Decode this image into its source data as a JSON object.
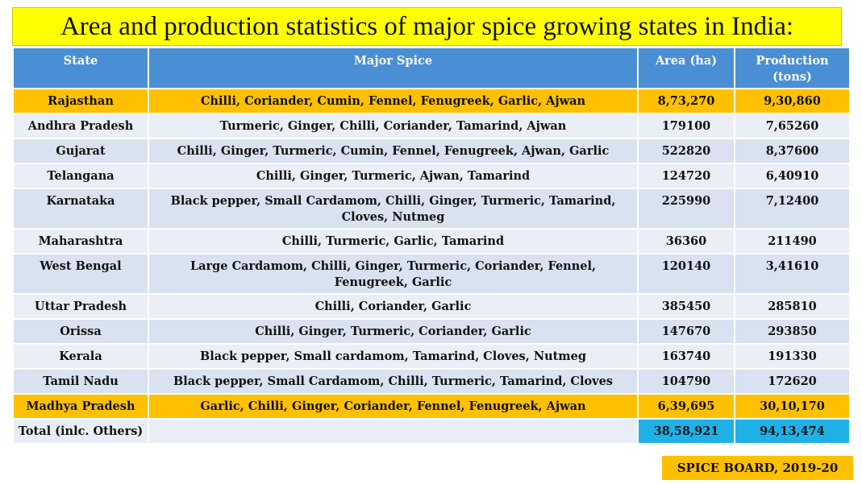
{
  "title": "Area and production statistics of major spice growing states in India:",
  "headers": {
    "state": "State",
    "spice": "Major Spice",
    "area": "Area (ha)",
    "production": "Production (tons)"
  },
  "rows": [
    {
      "state": "Rajasthan",
      "spice": "Chilli, Coriander, Cumin, Fennel, Fenugreek, Garlic, Ajwan",
      "area": "8,73,270",
      "production": "9,30,860"
    },
    {
      "state": "Andhra Pradesh",
      "spice": "Turmeric, Ginger, Chilli, Coriander, Tamarind, Ajwan",
      "area": "179100",
      "production": "7,65260"
    },
    {
      "state": "Gujarat",
      "spice": "Chilli, Ginger, Turmeric, Cumin, Fennel, Fenugreek, Ajwan, Garlic",
      "area": "522820",
      "production": "8,37600"
    },
    {
      "state": "Telangana",
      "spice": "Chilli, Ginger, Turmeric, Ajwan, Tamarind",
      "area": "124720",
      "production": "6,40910"
    },
    {
      "state": "Karnataka",
      "spice": "Black pepper, Small Cardamom, Chilli, Ginger, Turmeric, Tamarind, Cloves, Nutmeg",
      "area": "225990",
      "production": "7,12400"
    },
    {
      "state": "Maharashtra",
      "spice": "Chilli, Turmeric, Garlic, Tamarind",
      "area": "36360",
      "production": "211490"
    },
    {
      "state": "West Bengal",
      "spice": "Large Cardamom, Chilli, Ginger, Turmeric, Coriander, Fennel, Fenugreek, Garlic",
      "area": "120140",
      "production": "3,41610"
    },
    {
      "state": "Uttar Pradesh",
      "spice": "Chilli, Coriander, Garlic",
      "area": "385450",
      "production": "285810"
    },
    {
      "state": "Orissa",
      "spice": "Chilli, Ginger, Turmeric, Coriander, Garlic",
      "area": "147670",
      "production": "293850"
    },
    {
      "state": "Kerala",
      "spice": "Black pepper, Small cardamom, Tamarind, Cloves, Nutmeg",
      "area": "163740",
      "production": "191330"
    },
    {
      "state": "Tamil Nadu",
      "spice": "Black pepper, Small Cardamom, Chilli, Turmeric, Tamarind, Cloves",
      "area": "104790",
      "production": "172620"
    },
    {
      "state": "Madhya Pradesh",
      "spice": "Garlic, Chilli, Ginger, Coriander, Fennel, Fenugreek, Ajwan",
      "area": "6,39,695",
      "production": "30,10,170"
    }
  ],
  "total": {
    "state": "Total (inlc. Others)",
    "spice": "",
    "area": "38,58,921",
    "production": "94,13,474"
  },
  "source": "SPICE BOARD, 2019-20",
  "colors": {
    "title_bg": "#ffff00",
    "header_bg": "#4a8fd4",
    "highlight_bg": "#ffc000",
    "total_bg": "#1fb1e6",
    "row_dark": "#d8e2f0",
    "row_light": "#eaeff7"
  }
}
